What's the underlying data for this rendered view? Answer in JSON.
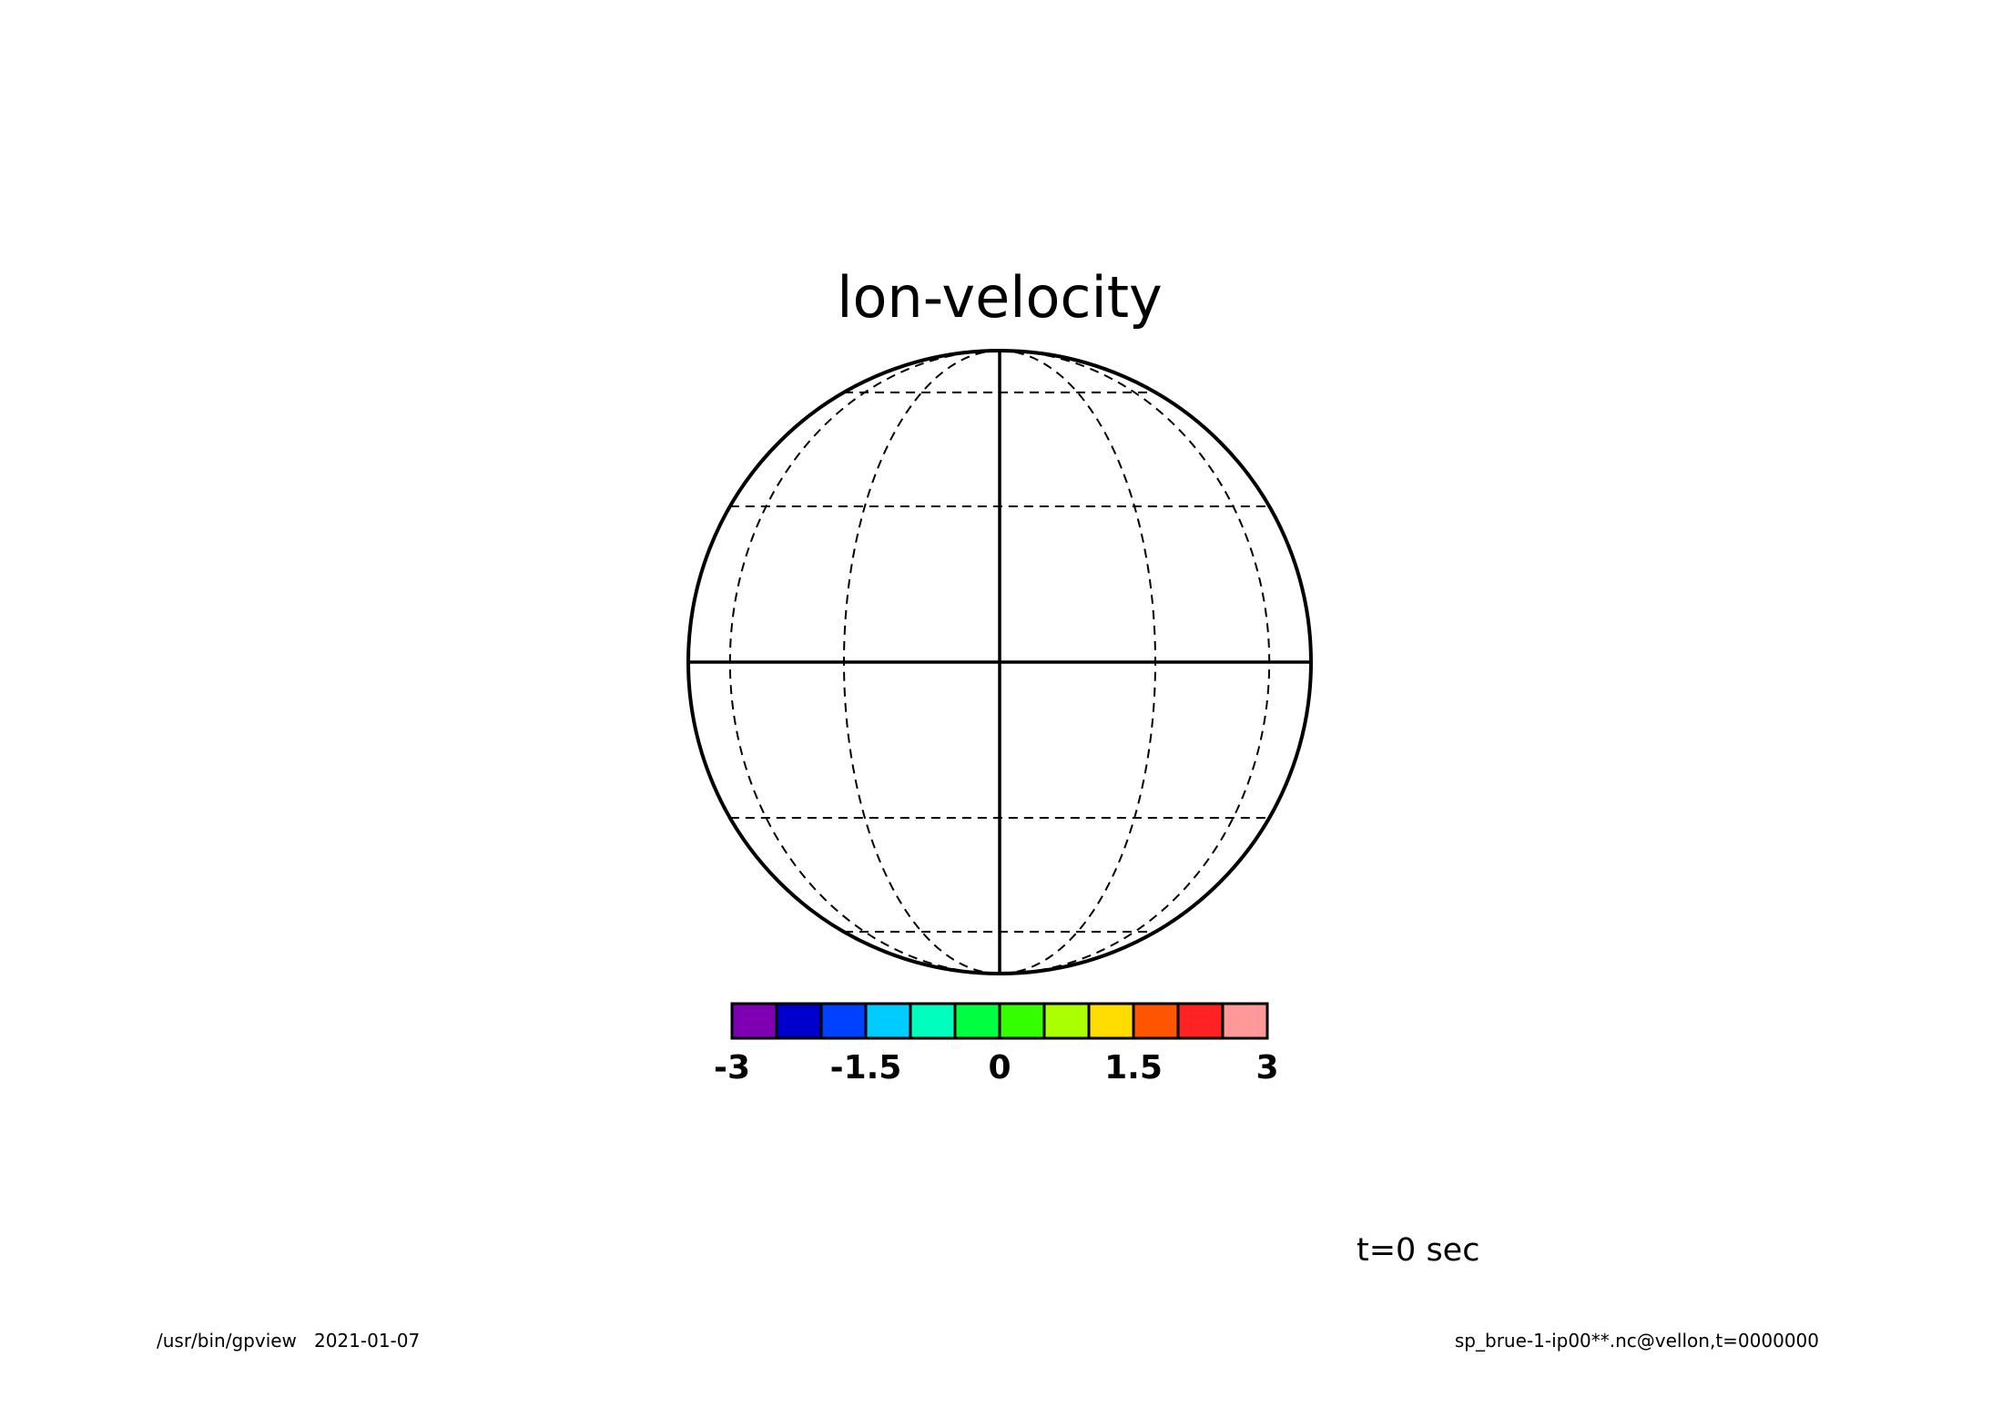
{
  "title": "lon-velocity",
  "time_label": "t=0 sec",
  "footer": {
    "left": "/usr/bin/gpview   2021-01-07",
    "right": "sp_brue-1-ip00**.nc@vellon,t=0000000"
  },
  "map": {
    "projection": "orthographic",
    "graticule_style": "dashed",
    "latitude_lines_deg": [
      -60,
      -30,
      0,
      30,
      60
    ],
    "longitude_lines_deg": [
      -60,
      -30,
      0,
      30,
      60
    ]
  },
  "colorbar": {
    "colors": [
      "#7f00b2",
      "#0000cc",
      "#0040ff",
      "#00ccff",
      "#00ffbf",
      "#00ff40",
      "#33ff00",
      "#aaff00",
      "#ffdd00",
      "#ff5500",
      "#ff2222",
      "#ff9999"
    ],
    "ticks": [
      {
        "value": -3,
        "label": "-3"
      },
      {
        "value": -1.5,
        "label": "-1.5"
      },
      {
        "value": 0,
        "label": "0"
      },
      {
        "value": 1.5,
        "label": "1.5"
      },
      {
        "value": 3,
        "label": "3"
      }
    ],
    "min": -3,
    "max": 3
  }
}
